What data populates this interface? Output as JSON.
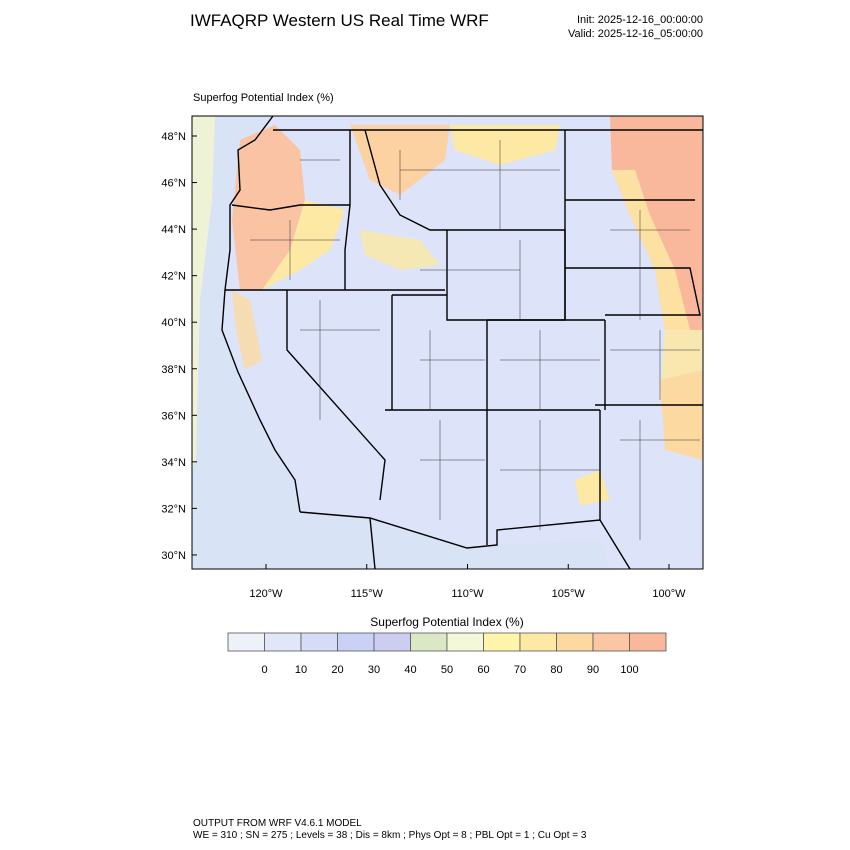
{
  "header": {
    "title": "IWFAQRP Western US Real Time WRF",
    "init": "Init: 2025-12-16_00:00:00",
    "valid": "Valid: 2025-12-16_05:00:00"
  },
  "map": {
    "subtitle": "Superfog Potential Index   (%)",
    "lat_labels": [
      "48°N",
      "46°N",
      "44°N",
      "42°N",
      "40°N",
      "38°N",
      "36°N",
      "34°N",
      "32°N",
      "30°N"
    ],
    "lon_labels": [
      "120°W",
      "115°W",
      "110°W",
      "105°W",
      "100°W"
    ]
  },
  "colorbar": {
    "title": "Superfog Potential Index  (%)",
    "labels": [
      0,
      10,
      20,
      30,
      40,
      50,
      60,
      70,
      80,
      90,
      100
    ],
    "colors": [
      "#eef1f8",
      "#e1e7f8",
      "#d4dcf7",
      "#c9d2f5",
      "#cccdf1",
      "#dbe8c6",
      "#f2f8d8",
      "#fff5aa",
      "#fde9a3",
      "#fcd9a0",
      "#fbc6a3",
      "#f9b79b"
    ]
  },
  "footer": {
    "lines": [
      "OUTPUT FROM WRF V4.6.1 MODEL",
      "WE = 310 ; SN = 275 ; Levels = 38 ; Dis = 8km ; Phys Opt = 8 ; PBL Opt = 1 ; Cu Opt = 3"
    ]
  }
}
